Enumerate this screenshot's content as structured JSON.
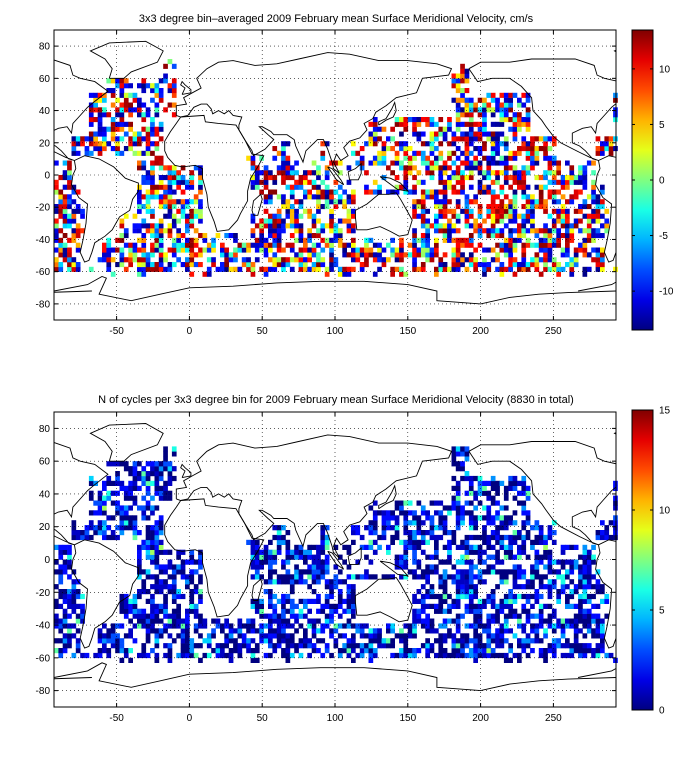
{
  "chart_data": [
    {
      "type": "heatmap",
      "title": "3x3 degree bin–averaged 2009 February mean Surface Meridional Velocity, cm/s",
      "xlabel": "",
      "ylabel": "",
      "xlim": [
        -93,
        293
      ],
      "ylim": [
        -90,
        90
      ],
      "xticks": [
        -50,
        0,
        50,
        100,
        150,
        200,
        250
      ],
      "yticks": [
        80,
        60,
        40,
        20,
        0,
        -20,
        -40,
        -60,
        -80
      ],
      "grid": true,
      "bin_size_deg": 3,
      "colorbar": {
        "range": [
          -13.5,
          13.5
        ],
        "ticks": [
          10,
          5,
          0,
          -5,
          -10
        ],
        "colormap": "jet"
      },
      "seed": 17
    },
    {
      "type": "heatmap",
      "title": "N of cycles per 3x3 degree bin for 2009 February mean Surface Meridional Velocity (8830 in total)",
      "xlabel": "",
      "ylabel": "",
      "xlim": [
        -93,
        293
      ],
      "ylim": [
        -90,
        90
      ],
      "xticks": [
        -50,
        0,
        50,
        100,
        150,
        200,
        250
      ],
      "yticks": [
        80,
        60,
        40,
        20,
        0,
        -20,
        -40,
        -60,
        -80
      ],
      "grid": true,
      "bin_size_deg": 3,
      "total_cycles": 8830,
      "colorbar": {
        "range": [
          0,
          15
        ],
        "ticks": [
          15,
          10,
          5,
          0
        ],
        "colormap": "jet"
      },
      "seed": 29
    }
  ],
  "colors": {
    "axis": "#000000",
    "grid": "#000000",
    "coast": "#000000",
    "background": "#ffffff"
  }
}
